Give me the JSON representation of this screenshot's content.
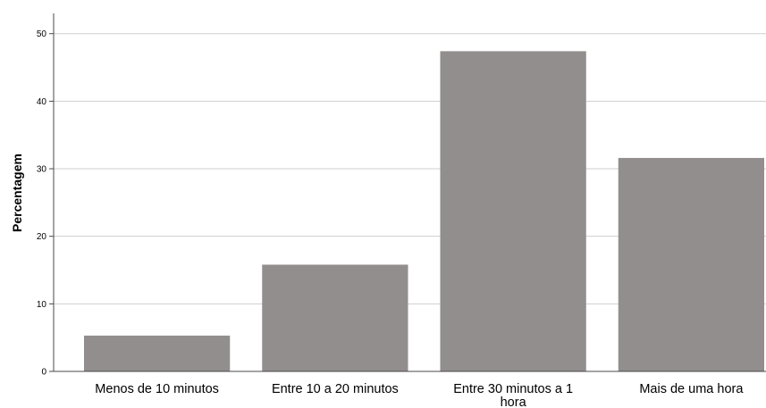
{
  "chart_data": {
    "type": "bar",
    "title": "",
    "xlabel": "",
    "ylabel": "Percentagem",
    "categories": [
      [
        "Menos de 10 minutos"
      ],
      [
        "Entre 10 a 20 minutos"
      ],
      [
        "Entre 30 minutos a 1",
        "hora"
      ],
      [
        "Mais de uma hora"
      ]
    ],
    "values": [
      5.3,
      15.8,
      47.4,
      31.6
    ],
    "ylim": [
      0,
      53
    ],
    "yticks": [
      0,
      10,
      20,
      30,
      40,
      50
    ],
    "grid": true,
    "legend": "none",
    "colors": {
      "bar": "#928e8d",
      "grid": "#cfcfcf",
      "axis": "#4a4a4a",
      "text": "#000000"
    }
  }
}
